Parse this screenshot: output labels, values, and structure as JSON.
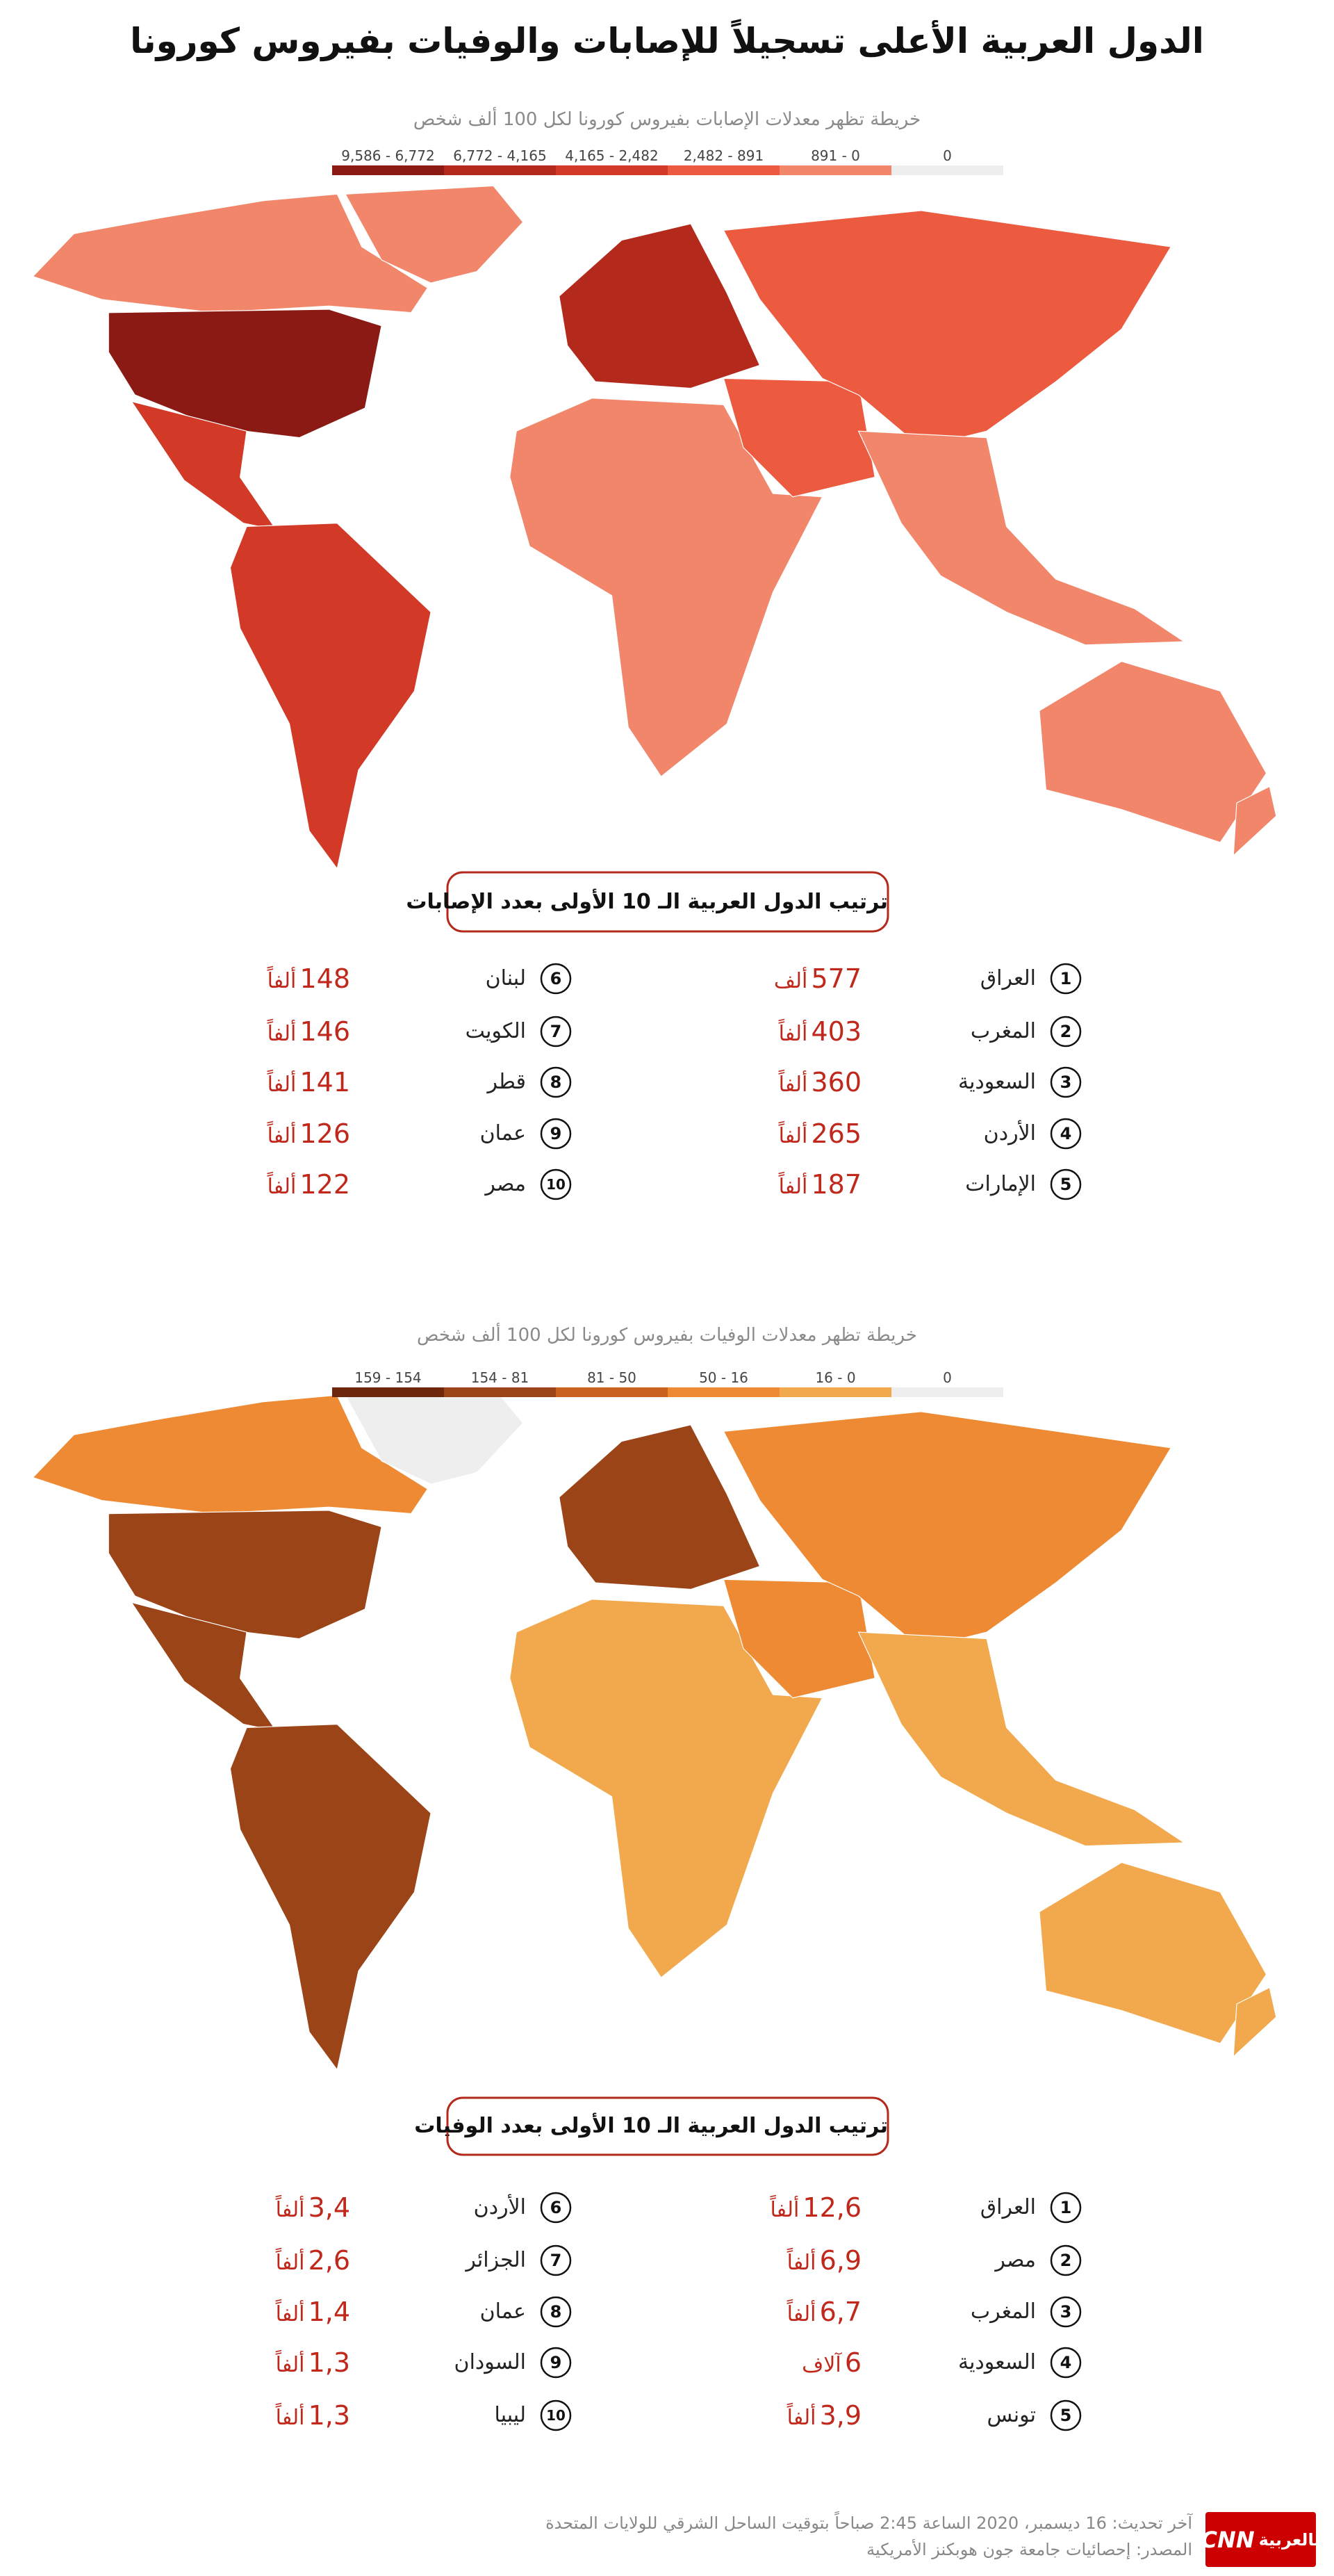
{
  "header": {
    "title": "الدول العربية الأعلى تسجيلاً للإصابات والوفيات بفيروس كورونا"
  },
  "sections": [
    {
      "map": {
        "subtitle": "خريطة تظهر معدلات الإصابات بفيروس كورونا لكل 100 ألف شخص",
        "legend": [
          {
            "label": "9,586 - 6,772",
            "color": "#8a1a13"
          },
          {
            "label": "6,772 - 4,165",
            "color": "#b3291c"
          },
          {
            "label": "4,165 - 2,482",
            "color": "#d23a27"
          },
          {
            "label": "2,482 - 891",
            "color": "#ec5a40"
          },
          {
            "label": "891 - 0",
            "color": "#f1866a"
          },
          {
            "label": "0",
            "color": "#eeeeee"
          }
        ]
      },
      "ranking": {
        "title": "ترتيب الدول العربية الـ 10 الأولى بعدد الإصابات",
        "entries": [
          {
            "rank": "1",
            "country": "العراق",
            "value": "577",
            "unit": "ألف"
          },
          {
            "rank": "2",
            "country": "المغرب",
            "value": "403",
            "unit": "ألفاً"
          },
          {
            "rank": "3",
            "country": "السعودية",
            "value": "360",
            "unit": "ألفاً"
          },
          {
            "rank": "4",
            "country": "الأردن",
            "value": "265",
            "unit": "ألفاً"
          },
          {
            "rank": "5",
            "country": "الإمارات",
            "value": "187",
            "unit": "ألفاً"
          },
          {
            "rank": "6",
            "country": "لبنان",
            "value": "148",
            "unit": "ألفاً"
          },
          {
            "rank": "7",
            "country": "الكويت",
            "value": "146",
            "unit": "ألفاً"
          },
          {
            "rank": "8",
            "country": "قطر",
            "value": "141",
            "unit": "ألفاً"
          },
          {
            "rank": "9",
            "country": "عمان",
            "value": "126",
            "unit": "ألفاً"
          },
          {
            "rank": "10",
            "country": "مصر",
            "value": "122",
            "unit": "ألفاً"
          }
        ]
      }
    },
    {
      "map": {
        "subtitle": "خريطة تظهر معدلات الوفيات بفيروس كورونا لكل 100 ألف شخص",
        "legend": [
          {
            "label": "159 - 154",
            "color": "#6e260d"
          },
          {
            "label": "154 - 81",
            "color": "#9b4417"
          },
          {
            "label": "81 - 50",
            "color": "#c9621f"
          },
          {
            "label": "50 - 16",
            "color": "#ee8a33"
          },
          {
            "label": "16 - 0",
            "color": "#f2a84c"
          },
          {
            "label": "0",
            "color": "#eeeeee"
          }
        ]
      },
      "ranking": {
        "title": "ترتيب الدول العربية الـ 10 الأولى بعدد الوفيات",
        "entries": [
          {
            "rank": "1",
            "country": "العراق",
            "value": "12,6",
            "unit": "ألفاً"
          },
          {
            "rank": "2",
            "country": "مصر",
            "value": "6,9",
            "unit": "ألفاً"
          },
          {
            "rank": "3",
            "country": "المغرب",
            "value": "6,7",
            "unit": "ألفاً"
          },
          {
            "rank": "4",
            "country": "السعودية",
            "value": "6",
            "unit": "آلاف"
          },
          {
            "rank": "5",
            "country": "تونس",
            "value": "3,9",
            "unit": "ألفاً"
          },
          {
            "rank": "6",
            "country": "الأردن",
            "value": "3,4",
            "unit": "ألفاً"
          },
          {
            "rank": "7",
            "country": "الجزائر",
            "value": "2,6",
            "unit": "ألفاً"
          },
          {
            "rank": "8",
            "country": "عمان",
            "value": "1,4",
            "unit": "ألفاً"
          },
          {
            "rank": "9",
            "country": "السودان",
            "value": "1,3",
            "unit": "ألفاً"
          },
          {
            "rank": "10",
            "country": "ليبيا",
            "value": "1,3",
            "unit": "ألفاً"
          }
        ]
      }
    }
  ],
  "footer": {
    "updated": "آخر تحديث: 16 ديسمبر، 2020 الساعة 2:45 صباحاً بتوقيت الساحل الشرقي للولايات المتحدة",
    "source": "المصدر: إحصائيات جامعة جون هوبكنز الأمريكية"
  },
  "logo": {
    "brand": "CNN",
    "suffix": "بالعربية"
  }
}
